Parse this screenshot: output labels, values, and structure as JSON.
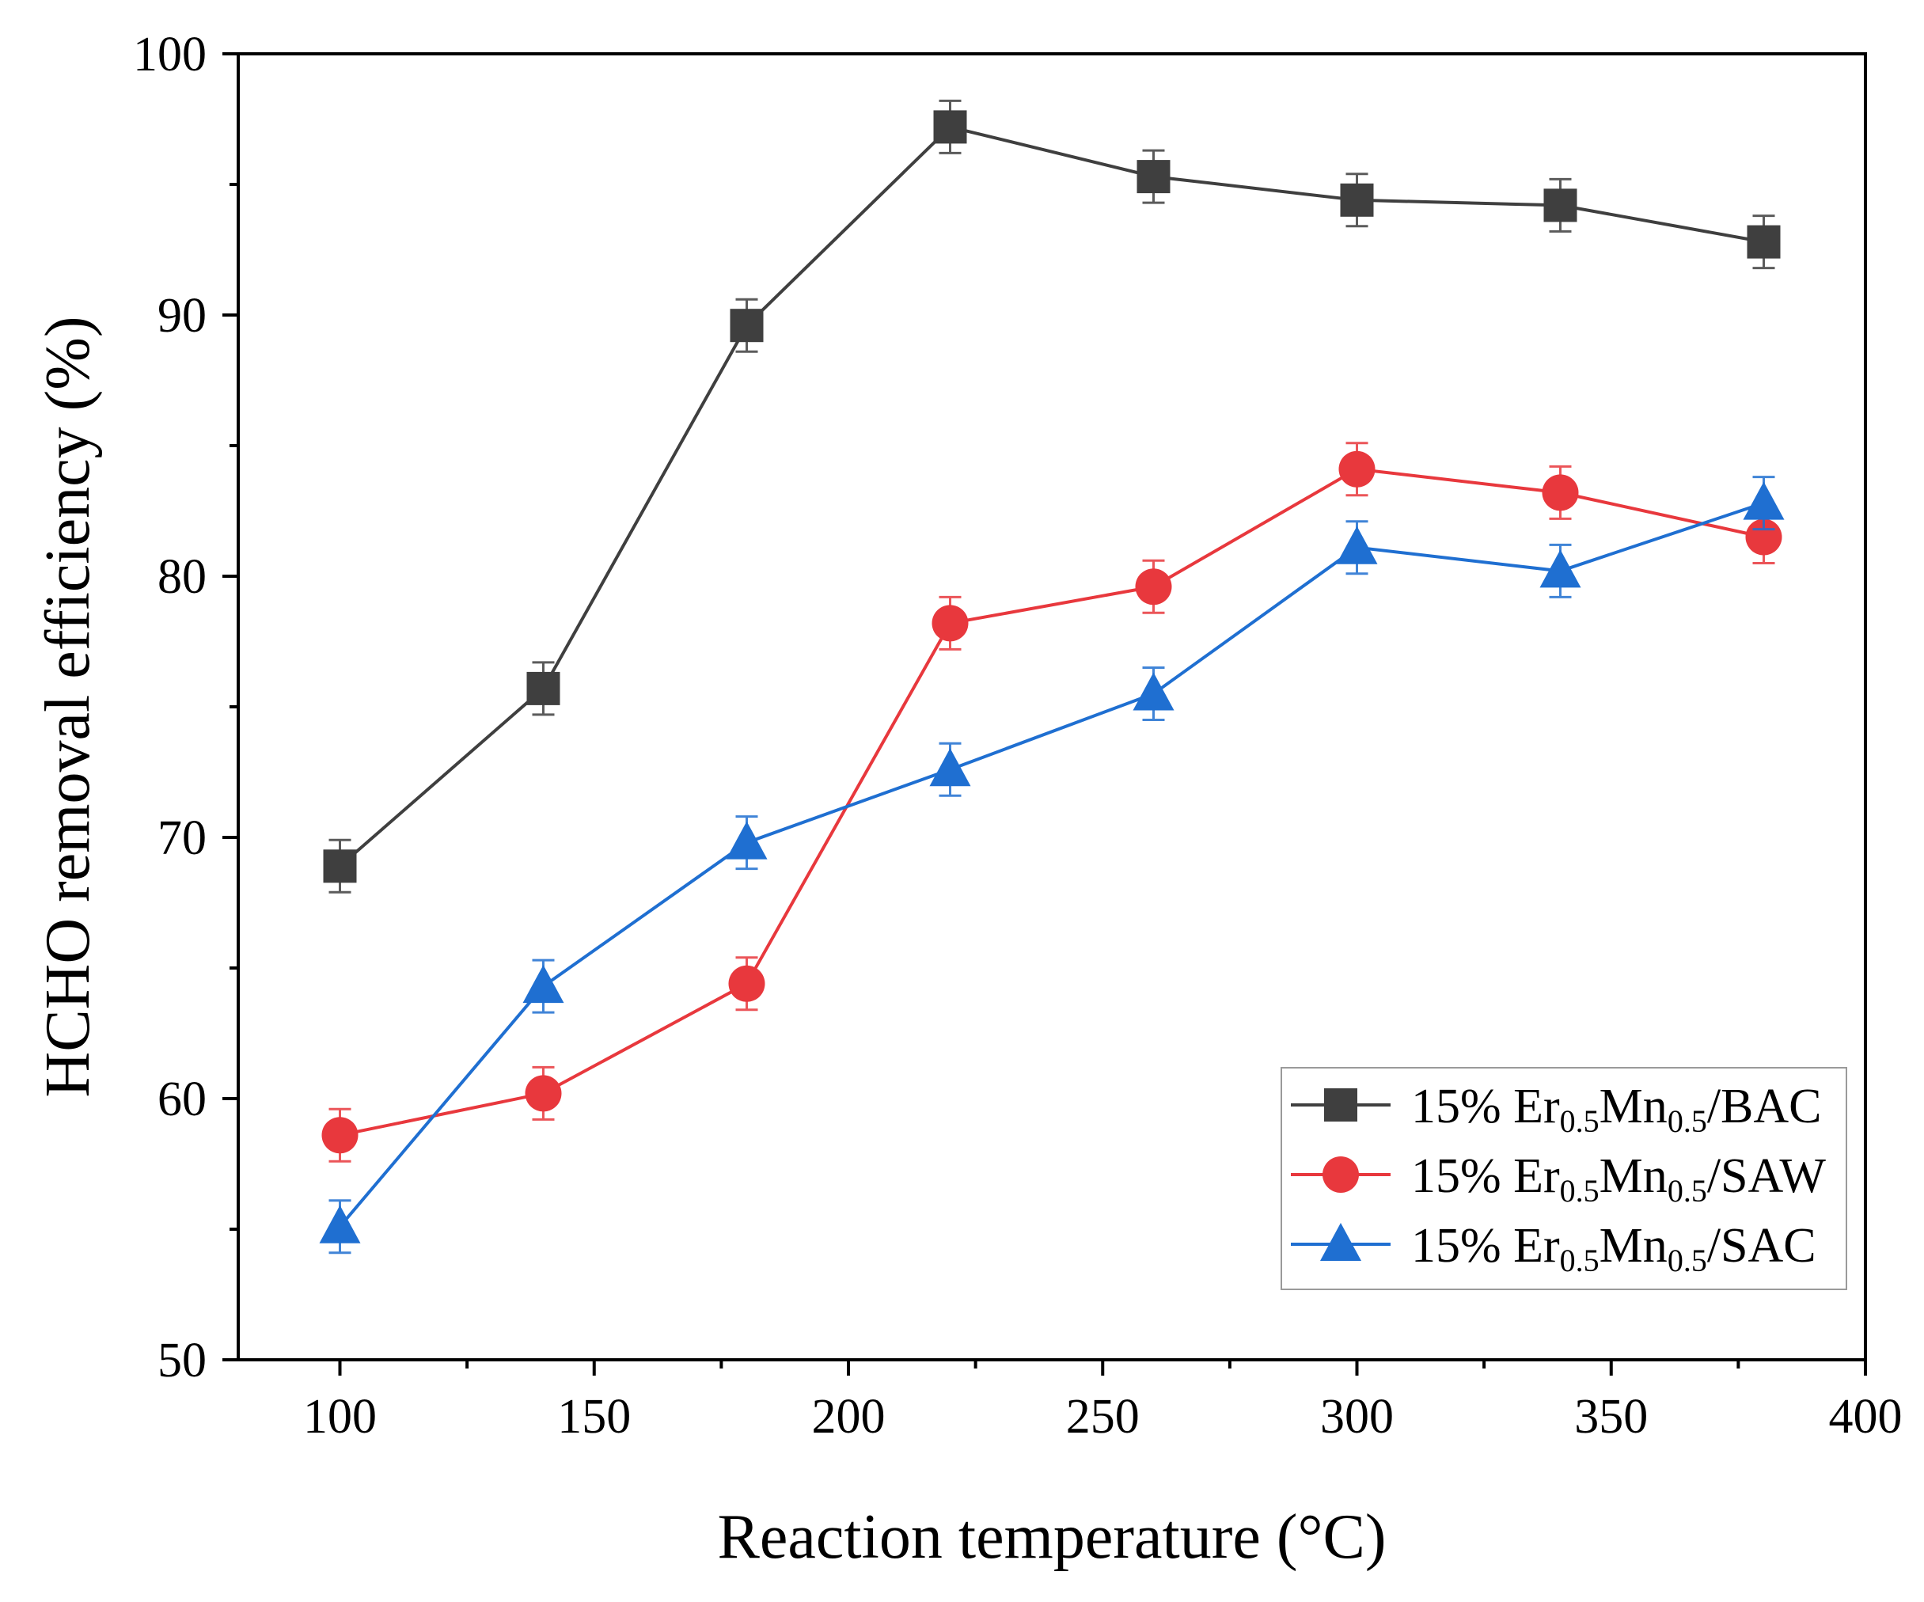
{
  "chart_data": {
    "type": "line",
    "title": "",
    "xlabel": "Reaction temperature (°C)",
    "ylabel": "HCHO removal efficiency (%)",
    "xlim": [
      80,
      400
    ],
    "ylim": [
      50,
      100
    ],
    "xticks": [
      100,
      150,
      200,
      250,
      300,
      350,
      400
    ],
    "yticks": [
      50,
      60,
      70,
      80,
      90,
      100
    ],
    "x_tick_labels": [
      "100",
      "150",
      "200",
      "250",
      "300",
      "350",
      "400"
    ],
    "y_tick_labels": [
      "50",
      "60",
      "70",
      "80",
      "90",
      "100"
    ],
    "x": [
      100,
      140,
      180,
      220,
      260,
      300,
      340,
      380
    ],
    "legend_position": "bottom-right",
    "series": [
      {
        "name": "15% Er0.5Mn0.5/BAC",
        "label_parts": [
          "15% Er",
          "0.5",
          "Mn",
          "0.5",
          "/BAC"
        ],
        "marker": "square",
        "color": "#3f3f3f",
        "values": [
          68.9,
          75.7,
          89.6,
          97.2,
          95.3,
          94.4,
          94.2,
          92.8
        ],
        "error": [
          1.0,
          1.0,
          1.0,
          1.0,
          1.0,
          1.0,
          1.0,
          1.0
        ]
      },
      {
        "name": "15% Er0.5Mn0.5/SAW",
        "label_parts": [
          "15% Er",
          "0.5",
          "Mn",
          "0.5",
          "/SAW"
        ],
        "marker": "circle",
        "color": "#e8383d",
        "values": [
          58.6,
          60.2,
          64.4,
          78.2,
          79.6,
          84.1,
          83.2,
          81.5
        ],
        "error": [
          1.0,
          1.0,
          1.0,
          1.0,
          1.0,
          1.0,
          1.0,
          1.0
        ]
      },
      {
        "name": "15% Er0.5Mn0.5/SAC",
        "label_parts": [
          "15% Er",
          "0.5",
          "Mn",
          "0.5",
          "/SAC"
        ],
        "marker": "triangle",
        "color": "#1f6fd1",
        "values": [
          55.1,
          64.3,
          69.8,
          72.6,
          75.5,
          81.1,
          80.2,
          82.8
        ],
        "error": [
          1.0,
          1.0,
          1.0,
          1.0,
          1.0,
          1.0,
          1.0,
          1.0
        ]
      }
    ]
  }
}
